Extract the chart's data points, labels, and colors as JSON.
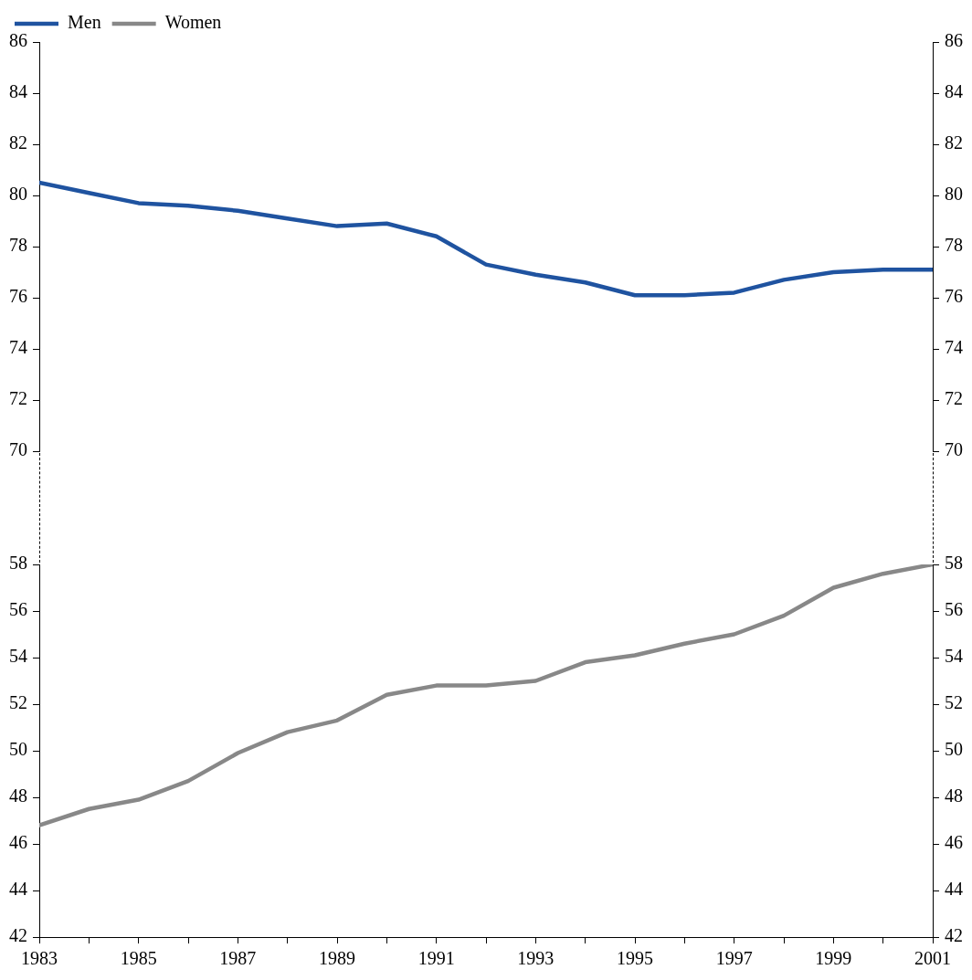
{
  "chart_data": [
    {
      "type": "line",
      "legend": "top left",
      "marker": "none",
      "tick_labels": "y",
      "x": [
        1983,
        1984,
        1985,
        1986,
        1987,
        1988,
        1989,
        1990,
        1991,
        1992,
        1993,
        1994,
        1995,
        1996,
        1997,
        1998,
        1999,
        2000,
        2001
      ],
      "xlim": [
        1983,
        2001
      ],
      "ylim": [
        70,
        86
      ],
      "yticks": [
        70,
        72,
        74,
        76,
        78,
        80,
        82,
        84,
        86
      ],
      "y2lim": [
        70,
        86
      ],
      "y2ticks": [
        70,
        72,
        74,
        76,
        78,
        80,
        82,
        84,
        86
      ],
      "series": [
        {
          "name": "Men",
          "color": "#1f53a0",
          "values": [
            80.5,
            80.1,
            79.7,
            79.6,
            79.4,
            79.1,
            78.8,
            78.9,
            78.4,
            77.3,
            76.9,
            76.6,
            76.1,
            76.1,
            76.2,
            76.7,
            77.0,
            77.1,
            77.1
          ]
        },
        {
          "name": "Women",
          "color": "#888888",
          "values": [
            null,
            null,
            null,
            null,
            null,
            null,
            null,
            null,
            null,
            null,
            null,
            null,
            null,
            null,
            null,
            null,
            null,
            null,
            null
          ]
        }
      ]
    },
    {
      "type": "line",
      "marker": "none",
      "x": [
        1983,
        1984,
        1985,
        1986,
        1987,
        1988,
        1989,
        1990,
        1991,
        1992,
        1993,
        1994,
        1995,
        1996,
        1997,
        1998,
        1999,
        2000,
        2001
      ],
      "xlim": [
        1983,
        2001
      ],
      "xticks": [
        1983,
        {
          "value": 1984,
          "label": null
        },
        1985,
        {
          "value": 1986,
          "label": null
        },
        1987,
        {
          "value": 1988,
          "label": null
        },
        1989,
        {
          "value": 1990,
          "label": null
        },
        1991,
        {
          "value": 1992,
          "label": null
        },
        1993,
        {
          "value": 1994,
          "label": null
        },
        1995,
        {
          "value": 1996,
          "label": null
        },
        1997,
        {
          "value": 1998,
          "label": null
        },
        1999,
        {
          "value": 2000,
          "label": null
        },
        2001
      ],
      "ylim": [
        42,
        58
      ],
      "yticks": [
        42,
        44,
        46,
        48,
        50,
        52,
        54,
        56,
        58
      ],
      "y2lim": [
        42,
        58
      ],
      "y2ticks": [
        42,
        44,
        46,
        48,
        50,
        52,
        54,
        56,
        58
      ],
      "series": [
        {
          "color": "#888888",
          "values": [
            46.8,
            47.5,
            47.9,
            48.7,
            49.9,
            50.8,
            51.3,
            52.4,
            52.8,
            52.8,
            53.0,
            53.8,
            54.1,
            54.6,
            55.0,
            55.8,
            57.0,
            57.6,
            58.0
          ]
        }
      ]
    }
  ]
}
